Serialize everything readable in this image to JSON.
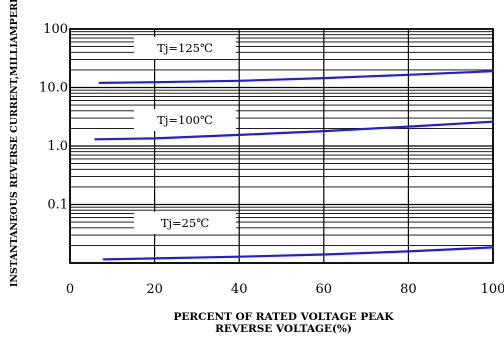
{
  "chart_data": {
    "type": "line",
    "xlabel": [
      "PERCENT OF RATED VOLTAGE PEAK",
      "REVERSE VOLTAGE(%)"
    ],
    "ylabel": "INSTANTANEOUS REVERSE CURRENT,MILLIAMPERES",
    "x_ticks": [
      "0",
      "20",
      "40",
      "60",
      "80",
      "100"
    ],
    "y_ticks": [
      "100",
      "10.0",
      "1.0",
      "0.1"
    ],
    "xlim": [
      0,
      100
    ],
    "ylim": [
      0.01,
      100
    ],
    "y_scale": "log",
    "grid": true,
    "series": [
      {
        "name": "Tj=125℃",
        "x": [
          7,
          20,
          40,
          60,
          80,
          100
        ],
        "y": [
          12,
          12.3,
          13,
          14.5,
          16.5,
          19
        ],
        "color": "#1f1fd6"
      },
      {
        "name": "Tj=100℃",
        "x": [
          6,
          20,
          40,
          60,
          80,
          100
        ],
        "y": [
          1.3,
          1.35,
          1.55,
          1.8,
          2.15,
          2.6
        ],
        "color": "#1f1fd6"
      },
      {
        "name": "Tj=25℃",
        "x": [
          8,
          20,
          40,
          60,
          80,
          100
        ],
        "y": [
          0.0115,
          0.012,
          0.0128,
          0.014,
          0.0158,
          0.0185
        ],
        "color": "#1f1fd6"
      }
    ]
  }
}
